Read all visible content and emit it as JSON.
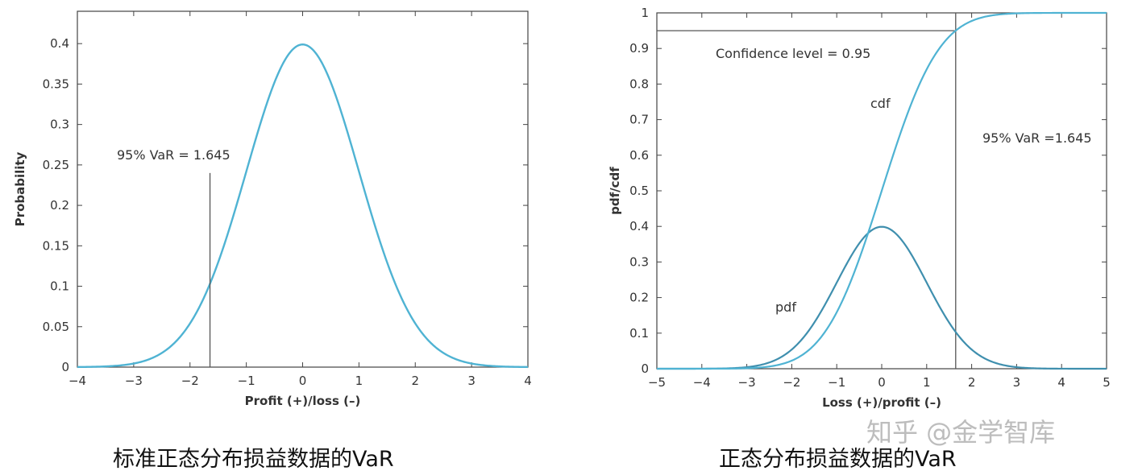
{
  "chart_data": [
    {
      "type": "line",
      "xlabel": "Profit (+)/loss (–)",
      "ylabel": "Probability",
      "xlim": [
        -4,
        4
      ],
      "ylim": [
        0,
        0.44
      ],
      "x_ticks": [
        "−4",
        "−3",
        "−2",
        "−1",
        "0",
        "1",
        "2",
        "3",
        "4"
      ],
      "y_ticks": [
        "0",
        "0.05",
        "0.1",
        "0.15",
        "0.2",
        "0.25",
        "0.3",
        "0.35",
        "0.4"
      ],
      "series": [
        {
          "curve": "standard normal pdf",
          "color": "#4fb3d3",
          "x": [
            -4,
            -3.5,
            -3,
            -2.5,
            -2,
            -1.645,
            -1.5,
            -1,
            -0.5,
            0,
            0.5,
            1,
            1.5,
            2,
            2.5,
            3,
            3.5,
            4
          ],
          "y": [
            0.0001,
            0.0009,
            0.0044,
            0.0175,
            0.054,
            0.1031,
            0.1295,
            0.242,
            0.3521,
            0.3989,
            0.3521,
            0.242,
            0.1295,
            0.054,
            0.0175,
            0.0044,
            0.0009,
            0.0001
          ]
        }
      ],
      "var_line": {
        "x": -1.645,
        "y_top": 0.24
      },
      "annotations": [
        "95% VaR = 1.645"
      ],
      "grid": false
    },
    {
      "type": "line",
      "xlabel": "Loss (+)/profit (–)",
      "ylabel": "pdf/cdf",
      "xlim": [
        -5,
        5
      ],
      "ylim": [
        0,
        1
      ],
      "x_ticks": [
        "−5",
        "−4",
        "−3",
        "−2",
        "−1",
        "0",
        "1",
        "2",
        "3",
        "4",
        "5"
      ],
      "y_ticks": [
        "0",
        "0.1",
        "0.2",
        "0.3",
        "0.4",
        "0.5",
        "0.6",
        "0.7",
        "0.8",
        "0.9",
        "1"
      ],
      "series": [
        {
          "label": "cdf",
          "color": "#4fb3d3",
          "x": [
            -5,
            -4,
            -3,
            -2.5,
            -2,
            -1.5,
            -1,
            -0.5,
            0,
            0.5,
            1,
            1.5,
            1.645,
            2,
            2.5,
            3,
            4,
            5
          ],
          "y": [
            0,
            0,
            0.0013,
            0.0062,
            0.0228,
            0.0668,
            0.1587,
            0.3085,
            0.5,
            0.6915,
            0.8413,
            0.9332,
            0.95,
            0.9772,
            0.9938,
            0.9987,
            1,
            1
          ]
        },
        {
          "label": "pdf",
          "color": "#3f8fae",
          "x": [
            -5,
            -4,
            -3,
            -2.5,
            -2,
            -1.5,
            -1,
            -0.5,
            0,
            0.5,
            1,
            1.5,
            1.645,
            2,
            2.5,
            3,
            4,
            5
          ],
          "y": [
            0,
            0.0001,
            0.0044,
            0.0175,
            0.054,
            0.1295,
            0.242,
            0.3521,
            0.3989,
            0.3521,
            0.242,
            0.1295,
            0.1031,
            0.054,
            0.0175,
            0.0044,
            0.0001,
            0
          ]
        }
      ],
      "confidence_line": {
        "y": 0.95,
        "x_end": 1.645
      },
      "var_line": {
        "x": 1.645
      },
      "annotations": [
        "Confidence level = 0.95",
        "95% VaR =1.645"
      ],
      "grid": false
    }
  ],
  "captions": {
    "left": "标准正态分布损益数据的VaR",
    "right": "正态分布损益数据的VaR"
  },
  "watermark": "知乎 @金学智库"
}
